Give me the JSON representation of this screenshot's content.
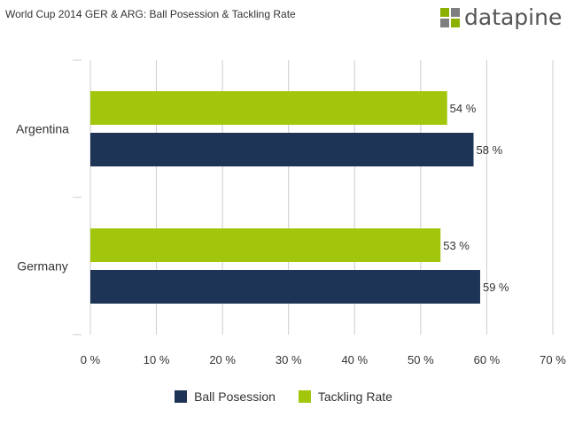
{
  "header": {
    "title": "World Cup 2014 GER & ARG: Ball Posession & Tackling Rate",
    "logo_text": "datapine"
  },
  "colors": {
    "ball_posession": "#1e3456",
    "tackling_rate": "#a2c60c",
    "grid": "#cccccc",
    "logo_green": "#8cb000",
    "logo_gray": "#7f7f7f"
  },
  "chart_data": {
    "type": "bar",
    "orientation": "horizontal",
    "title": "World Cup 2014 GER & ARG: Ball Posession & Tackling Rate",
    "categories": [
      "Argentina",
      "Germany"
    ],
    "series": [
      {
        "name": "Tackling Rate",
        "values": [
          54,
          53
        ],
        "labels": [
          "54 %",
          "53 %"
        ]
      },
      {
        "name": "Ball Posession",
        "values": [
          58,
          59
        ],
        "labels": [
          "58 %",
          "59 %"
        ]
      }
    ],
    "xlim": [
      0,
      70
    ],
    "xticks": [
      "0 %",
      "10 %",
      "20 %",
      "30 %",
      "40 %",
      "50 %",
      "60 %",
      "70 %"
    ],
    "grid": true,
    "legend_position": "bottom",
    "legend": [
      "Ball Posession",
      "Tackling Rate"
    ]
  }
}
